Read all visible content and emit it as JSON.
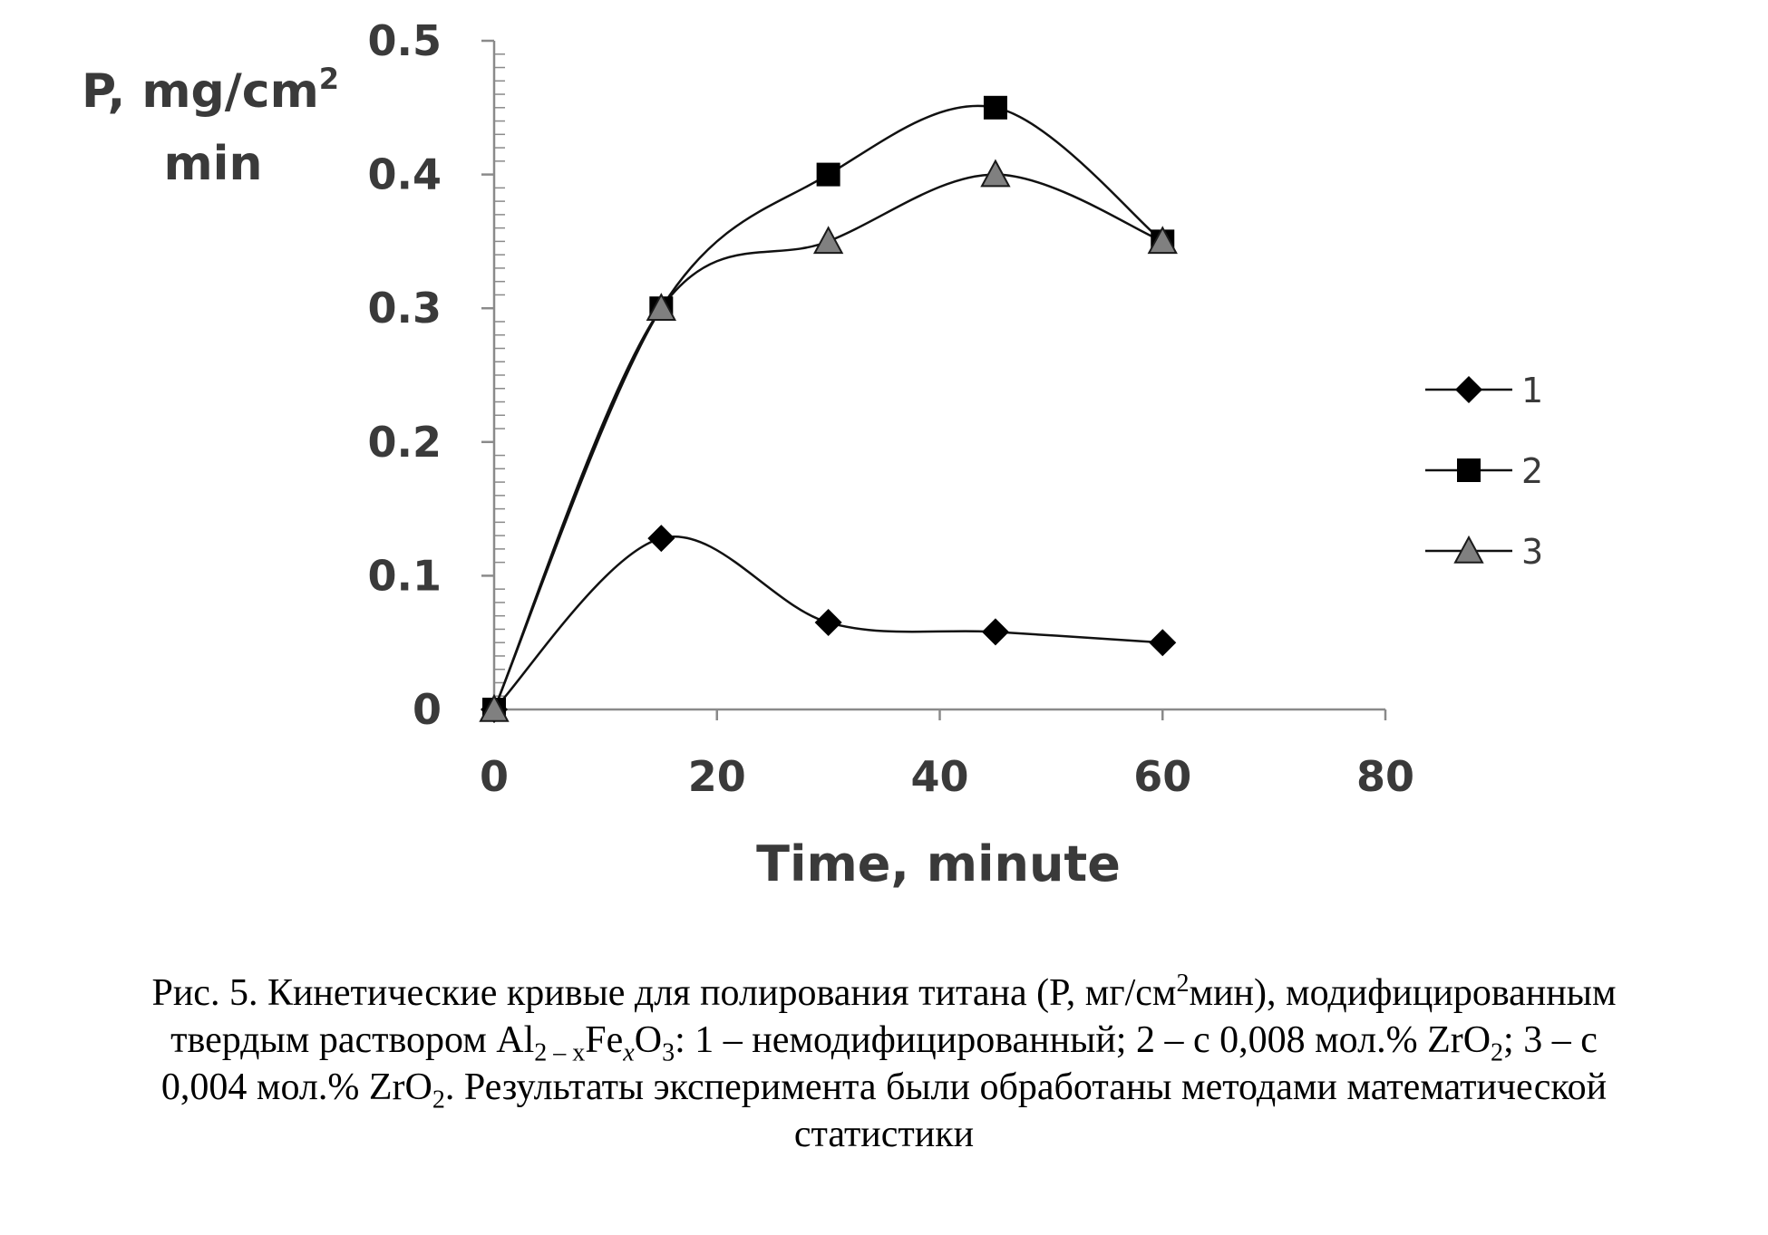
{
  "chart_data": {
    "type": "line",
    "ylabel_line1": "P, mg/cm",
    "ylabel_sup": "2",
    "ylabel_line2": "min",
    "xlabel": "Time, minute",
    "xlim": [
      0,
      80
    ],
    "ylim": [
      0,
      0.5
    ],
    "x_ticks": [
      "0",
      "20",
      "40",
      "60",
      "80"
    ],
    "y_ticks": [
      "0",
      "0.1",
      "0.2",
      "0.3",
      "0.4",
      "0.5"
    ],
    "x_tick_values": [
      0,
      20,
      40,
      60,
      80
    ],
    "y_tick_values": [
      0,
      0.1,
      0.2,
      0.3,
      0.4,
      0.5
    ],
    "legend_position": "right",
    "series": [
      {
        "name": "1",
        "marker": "diamond",
        "color": "#000000",
        "x": [
          0,
          15,
          30,
          45,
          60
        ],
        "y": [
          0,
          0.128,
          0.065,
          0.058,
          0.05
        ]
      },
      {
        "name": "2",
        "marker": "square",
        "color": "#000000",
        "x": [
          0,
          15,
          30,
          45,
          60
        ],
        "y": [
          0,
          0.3,
          0.4,
          0.45,
          0.35
        ]
      },
      {
        "name": "3",
        "marker": "triangle",
        "color": "#808080",
        "x": [
          0,
          15,
          30,
          45,
          60
        ],
        "y": [
          0,
          0.3,
          0.35,
          0.4,
          0.35
        ]
      }
    ]
  },
  "caption": {
    "l1a": "Рис. 5. Кинетические кривые для полирования титана (P, мг/см",
    "l1sup": "2",
    "l1b": "мин),  модифицированным",
    "l2a": "твердым раствором Al",
    "l2sub1": "2 – x",
    "l2b": "Fe",
    "l2sub2": "x",
    "l2c": "O",
    "l2sub3": "3",
    "l2d": ": 1 – немодифицированный; 2 – с 0,008 мол.% ZrO",
    "l2sub4": "2",
    "l2e": "; 3 – с",
    "l3a": "0,004 мол.% ZrO",
    "l3sub": "2",
    "l3b": ". Результаты эксперимента были обработаны методами математической",
    "l4": "статистики"
  }
}
